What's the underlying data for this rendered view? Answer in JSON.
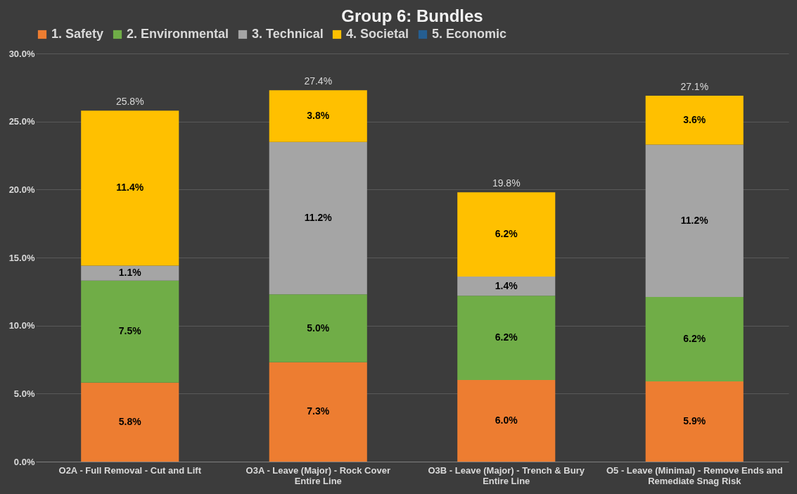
{
  "chart_data": {
    "type": "bar",
    "title": "Group 6: Bundles",
    "stacked": true,
    "categories": [
      "O2A - Full Removal - Cut and Lift",
      "O3A - Leave (Major) - Rock Cover Entire Line",
      "O3B - Leave (Major) - Trench & Bury Entire Line",
      "O5 - Leave (Minimal) - Remove Ends and Remediate Snag Risk"
    ],
    "series": [
      {
        "name": "1. Safety",
        "color": "#ed7d31",
        "values": [
          5.8,
          7.3,
          6.0,
          5.9
        ],
        "value_labels": [
          "5.8%",
          "7.3%",
          "6.0%",
          "5.9%"
        ]
      },
      {
        "name": "2. Environmental",
        "color": "#70ad47",
        "values": [
          7.5,
          5.0,
          6.2,
          6.2
        ],
        "value_labels": [
          "7.5%",
          "5.0%",
          "6.2%",
          "6.2%"
        ]
      },
      {
        "name": "3. Technical",
        "color": "#a5a5a5",
        "values": [
          1.1,
          11.2,
          1.4,
          11.2
        ],
        "value_labels": [
          "1.1%",
          "11.2%",
          "1.4%",
          "11.2%"
        ]
      },
      {
        "name": "4. Societal",
        "color": "#ffc000",
        "values": [
          11.4,
          3.8,
          6.2,
          3.6
        ],
        "value_labels": [
          "11.4%",
          "3.8%",
          "6.2%",
          "3.6%"
        ]
      },
      {
        "name": "5. Economic",
        "color": "#255e91",
        "values": [
          0,
          0,
          0,
          0
        ],
        "value_labels": [
          null,
          null,
          null,
          null
        ]
      }
    ],
    "totals": [
      "25.8%",
      "27.4%",
      "19.8%",
      "27.1%"
    ],
    "ylim": [
      0,
      30
    ],
    "yticks": [
      {
        "value": 0,
        "label": "0.0%"
      },
      {
        "value": 5,
        "label": "5.0%"
      },
      {
        "value": 10,
        "label": "10.0%"
      },
      {
        "value": 15,
        "label": "15.0%"
      },
      {
        "value": 20,
        "label": "20.0%"
      },
      {
        "value": 25,
        "label": "25.0%"
      },
      {
        "value": 30,
        "label": "30.0%"
      }
    ],
    "grid": "y",
    "legend": "top"
  }
}
